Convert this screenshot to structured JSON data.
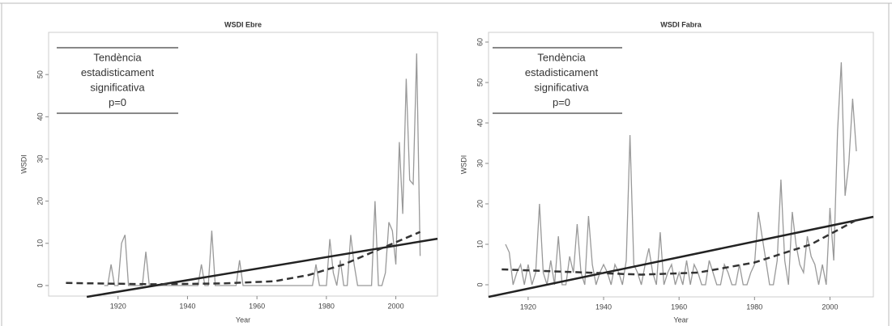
{
  "chart_data": [
    {
      "type": "line",
      "title": "WSDI Ebre",
      "x_label": "Year",
      "y_label": "WSDI",
      "annotation": [
        "Tendència",
        "estadisticament",
        "significativa",
        "p=0"
      ],
      "xlim": [
        1900,
        2012
      ],
      "xticks": [
        1920,
        1940,
        1960,
        1980,
        2000
      ],
      "ylim": [
        -2.5,
        60
      ],
      "yticks": [
        0,
        10,
        20,
        30,
        40,
        50
      ],
      "series": [
        {
          "color": "#999999",
          "style": "solid",
          "x": [
            1916,
            1917,
            1918,
            1919,
            1920,
            1921,
            1922,
            1923,
            1924,
            1925,
            1926,
            1927,
            1928,
            1929,
            1930,
            1931,
            1932,
            1933,
            1934,
            1935,
            1936,
            1937,
            1938,
            1939,
            1940,
            1941,
            1942,
            1943,
            1944,
            1945,
            1946,
            1947,
            1948,
            1949,
            1950,
            1951,
            1952,
            1953,
            1954,
            1955,
            1956,
            1957,
            1958,
            1959,
            1960,
            1961,
            1962,
            1963,
            1964,
            1965,
            1966,
            1967,
            1968,
            1969,
            1970,
            1971,
            1972,
            1973,
            1974,
            1975,
            1976,
            1977,
            1978,
            1979,
            1980,
            1981,
            1982,
            1983,
            1984,
            1985,
            1986,
            1987,
            1988,
            1989,
            1990,
            1991,
            1992,
            1993,
            1994,
            1995,
            1996,
            1997,
            1998,
            1999,
            2000,
            2001,
            2002,
            2003,
            2004,
            2005,
            2006,
            2007
          ],
          "values": [
            0,
            0,
            5,
            0,
            0,
            10,
            12,
            0,
            0,
            0,
            0,
            0,
            8,
            0,
            0,
            0,
            0,
            0,
            0,
            0,
            0,
            0,
            0,
            0,
            0,
            0,
            0,
            0,
            5,
            0,
            0,
            13,
            0,
            0,
            0,
            0,
            0,
            0,
            0,
            6,
            0,
            0,
            0,
            0,
            0,
            0,
            0,
            0,
            0,
            0,
            0,
            0,
            0,
            0,
            0,
            0,
            0,
            0,
            0,
            0,
            0,
            5,
            0,
            0,
            0,
            11,
            3,
            0,
            6,
            0,
            0,
            12,
            5,
            0,
            0,
            0,
            0,
            0,
            20,
            0,
            0,
            3,
            15,
            13,
            5,
            34,
            17,
            49,
            25,
            24,
            55,
            7
          ]
        },
        {
          "color": "#222222",
          "style": "solid",
          "x": [
            1911,
            2012
          ],
          "values": [
            -2.7,
            11.1
          ]
        },
        {
          "color": "#333333",
          "style": "dashed",
          "x": [
            1905,
            1930,
            1950,
            1965,
            1975,
            1985,
            1995,
            2007
          ],
          "values": [
            0.6,
            0.3,
            0.5,
            1,
            2.5,
            5,
            8.5,
            12.7
          ]
        }
      ]
    },
    {
      "type": "line",
      "title": "WSDI Fabra",
      "x_label": "Year",
      "y_label": "WSDI",
      "annotation": [
        "Tendència",
        "estadisticament",
        "significativa",
        "p=0"
      ],
      "xlim": [
        1909.5,
        2011.5
      ],
      "xticks": [
        1920,
        1940,
        1960,
        1980,
        2000
      ],
      "ylim": [
        -3,
        62.4
      ],
      "yticks": [
        0,
        10,
        20,
        30,
        40,
        50,
        60
      ],
      "series": [
        {
          "color": "#999999",
          "style": "solid",
          "x": [
            1914,
            1915,
            1916,
            1917,
            1918,
            1919,
            1920,
            1921,
            1922,
            1923,
            1924,
            1925,
            1926,
            1927,
            1928,
            1929,
            1930,
            1931,
            1932,
            1933,
            1934,
            1935,
            1936,
            1937,
            1938,
            1939,
            1940,
            1941,
            1942,
            1943,
            1944,
            1945,
            1946,
            1947,
            1948,
            1949,
            1950,
            1951,
            1952,
            1953,
            1954,
            1955,
            1956,
            1957,
            1958,
            1959,
            1960,
            1961,
            1962,
            1963,
            1964,
            1965,
            1966,
            1967,
            1968,
            1969,
            1970,
            1971,
            1972,
            1973,
            1974,
            1975,
            1976,
            1977,
            1978,
            1979,
            1980,
            1981,
            1982,
            1983,
            1984,
            1985,
            1986,
            1987,
            1988,
            1989,
            1990,
            1991,
            1992,
            1993,
            1994,
            1995,
            1996,
            1997,
            1998,
            1999,
            2000,
            2001,
            2002,
            2003,
            2004,
            2005,
            2006,
            2007
          ],
          "values": [
            10,
            8,
            0,
            3,
            5,
            0,
            5,
            0,
            3,
            20,
            3,
            0,
            6,
            0,
            12,
            0,
            0,
            7,
            3,
            15,
            3,
            0,
            17,
            5,
            0,
            3,
            5,
            3,
            0,
            5,
            3,
            0,
            6,
            37,
            5,
            3,
            0,
            5,
            9,
            3,
            0,
            13,
            0,
            3,
            5,
            0,
            3,
            0,
            6,
            0,
            5,
            3,
            0,
            0,
            6,
            3,
            0,
            0,
            5,
            3,
            0,
            0,
            5,
            0,
            0,
            3,
            5,
            18,
            12,
            6,
            0,
            0,
            6,
            26,
            6,
            0,
            18,
            10,
            5,
            3,
            12,
            7,
            5,
            0,
            5,
            0,
            19,
            6,
            38,
            55,
            22,
            30,
            46,
            33
          ]
        },
        {
          "color": "#222222",
          "style": "solid",
          "x": [
            1909.5,
            2011.5
          ],
          "values": [
            -3,
            16.8
          ]
        },
        {
          "color": "#333333",
          "style": "dashed",
          "x": [
            1913,
            1950,
            1965,
            1980,
            1995,
            2007
          ],
          "values": [
            3.8,
            2.5,
            3,
            5.5,
            10,
            16
          ]
        }
      ]
    }
  ]
}
